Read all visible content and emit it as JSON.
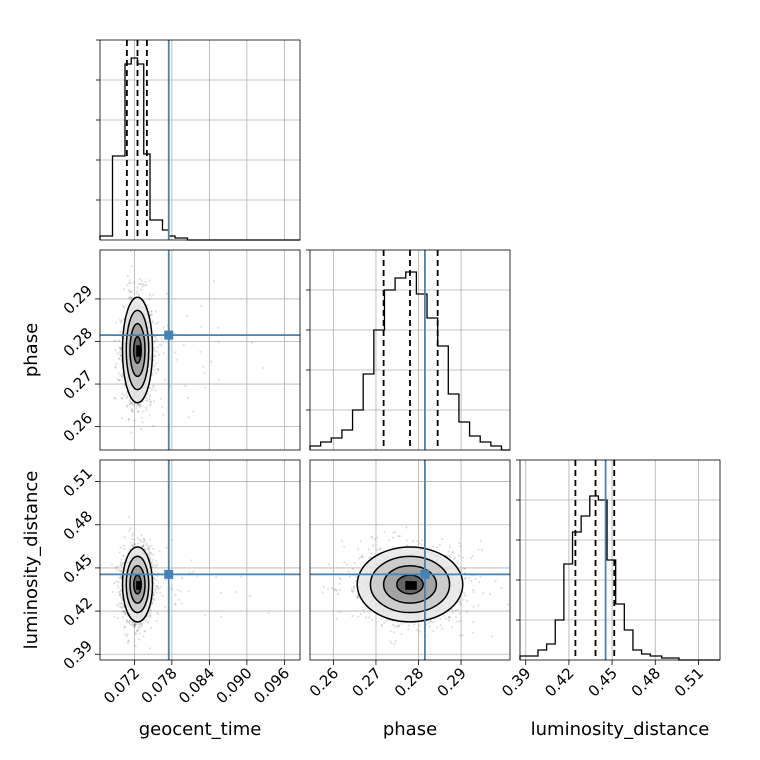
{
  "chart_data": {
    "type": "corner",
    "parameters": [
      {
        "name": "geocent_time",
        "label": "geocent_time",
        "range": [
          0.0665,
          0.0985
        ],
        "ticks": [
          "0.072",
          "0.078",
          "0.084",
          "0.090",
          "0.096"
        ],
        "tick_values": [
          0.072,
          0.078,
          0.084,
          0.09,
          0.096
        ],
        "truth": 0.0775,
        "quantiles": [
          0.0708,
          0.0725,
          0.074
        ],
        "median": 0.0725,
        "sd": 0.0012
      },
      {
        "name": "phase",
        "label": "phase",
        "range": [
          0.2545,
          0.3015
        ],
        "ticks": [
          "0.26",
          "0.27",
          "0.28",
          "0.29"
        ],
        "tick_values": [
          0.26,
          0.27,
          0.28,
          0.29
        ],
        "truth": 0.2815,
        "quantiles": [
          0.2718,
          0.278,
          0.2845
        ],
        "median": 0.278,
        "sd": 0.0062
      },
      {
        "name": "luminosity_distance",
        "label": "luminosity_distance",
        "range": [
          0.386,
          0.525
        ],
        "ticks": [
          "0.39",
          "0.42",
          "0.45",
          "0.48",
          "0.51"
        ],
        "tick_values": [
          0.39,
          0.42,
          0.45,
          0.48,
          0.51
        ],
        "truth": 0.4455,
        "quantiles": [
          0.4245,
          0.4385,
          0.4515
        ],
        "median": 0.4385,
        "sd": 0.013
      }
    ],
    "histograms": [
      {
        "parameter": "geocent_time",
        "bin_edges": [
          0.0665,
          0.0685,
          0.0705,
          0.0715,
          0.0725,
          0.0735,
          0.0745,
          0.0765,
          0.0775,
          0.0785,
          0.0805,
          0.0985
        ],
        "counts": [
          0.02,
          0.42,
          0.88,
          0.91,
          0.88,
          0.43,
          0.1,
          0.05,
          0.02,
          0.01,
          0.0
        ]
      },
      {
        "parameter": "phase",
        "bin_edges": [
          0.2545,
          0.257,
          0.2595,
          0.262,
          0.2645,
          0.267,
          0.2695,
          0.272,
          0.2745,
          0.277,
          0.2795,
          0.282,
          0.2845,
          0.287,
          0.2895,
          0.292,
          0.2945,
          0.297,
          0.2995,
          0.3015
        ],
        "counts": [
          0.02,
          0.04,
          0.06,
          0.1,
          0.2,
          0.38,
          0.6,
          0.8,
          0.86,
          0.89,
          0.78,
          0.66,
          0.52,
          0.28,
          0.14,
          0.07,
          0.04,
          0.02,
          0.0
        ]
      },
      {
        "parameter": "luminosity_distance",
        "bin_edges": [
          0.386,
          0.3985,
          0.4045,
          0.4105,
          0.4165,
          0.4225,
          0.4285,
          0.4345,
          0.4405,
          0.4465,
          0.4525,
          0.4585,
          0.4645,
          0.4705,
          0.4765,
          0.4845,
          0.4965,
          0.525
        ],
        "counts": [
          0.02,
          0.05,
          0.08,
          0.2,
          0.48,
          0.64,
          0.72,
          0.82,
          0.8,
          0.5,
          0.28,
          0.15,
          0.05,
          0.03,
          0.02,
          0.01,
          0.0
        ]
      }
    ],
    "scatter_panels": [
      {
        "x": "geocent_time",
        "y": "phase"
      },
      {
        "x": "geocent_time",
        "y": "luminosity_distance"
      },
      {
        "x": "phase",
        "y": "luminosity_distance"
      }
    ],
    "truth_color": "#4682b4",
    "quantile_style": "dashed",
    "grid": true
  }
}
